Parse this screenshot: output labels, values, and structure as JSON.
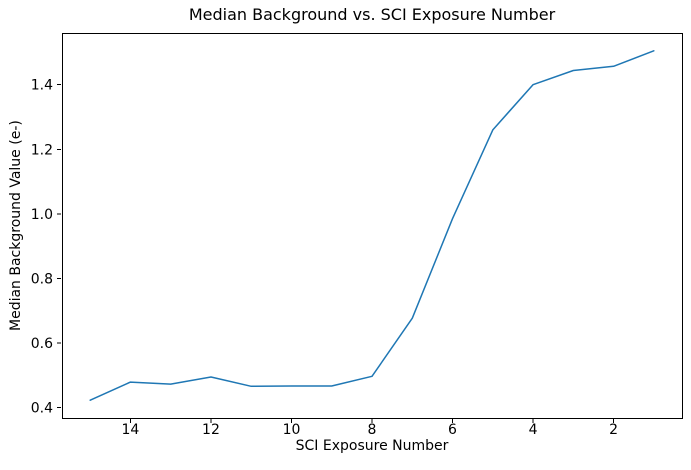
{
  "chart_data": {
    "type": "line",
    "title": "Median Background vs. SCI Exposure Number",
    "xlabel": "SCI Exposure Number",
    "ylabel": "Median Background Value (e-)",
    "x": [
      15,
      14,
      13,
      12,
      11,
      10,
      9,
      8,
      7,
      6,
      5,
      4,
      3,
      2,
      1
    ],
    "y": [
      0.423,
      0.479,
      0.473,
      0.495,
      0.466,
      0.467,
      0.467,
      0.497,
      0.677,
      0.985,
      1.26,
      1.4,
      1.444,
      1.457,
      1.505
    ],
    "x_ticks": [
      14,
      12,
      10,
      8,
      6,
      4,
      2
    ],
    "y_ticks": [
      0.4,
      0.6,
      0.8,
      1.0,
      1.2,
      1.4
    ],
    "xlim": [
      15.7,
      0.3
    ],
    "ylim": [
      0.368,
      1.56
    ],
    "x_axis_inverted": true,
    "grid": false,
    "legend": false,
    "line_color": "#1f77b4",
    "axis_color": "#000000",
    "background_color": "#ffffff"
  }
}
